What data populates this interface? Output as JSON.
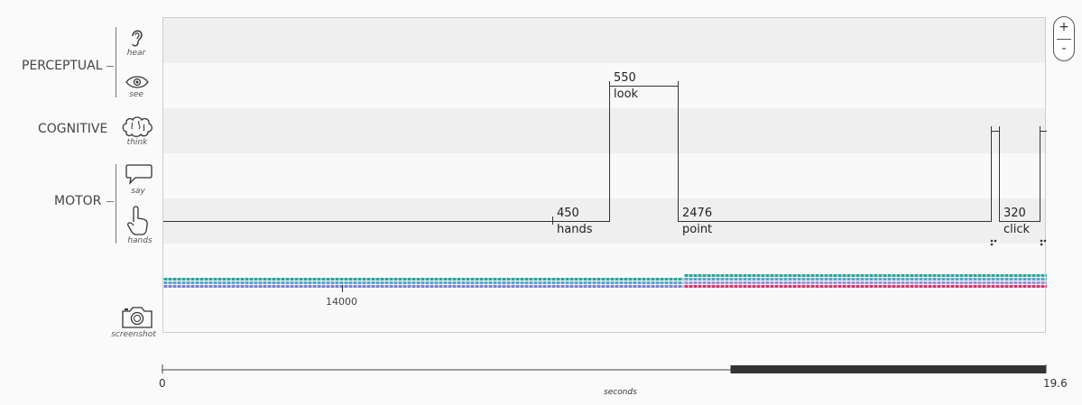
{
  "groups": {
    "perceptual": "PERCEPTUAL",
    "cognitive": "COGNITIVE",
    "motor": "MOTOR"
  },
  "operators": {
    "hear": "hear",
    "see": "see",
    "think": "think",
    "say": "say",
    "hands": "hands",
    "screenshot": "screenshot"
  },
  "icons": {
    "hear": "ear-icon",
    "see": "eye-icon",
    "think": "brain-icon",
    "say": "speech-bubble-icon",
    "hands": "pointing-hand-icon",
    "screenshot": "camera-icon"
  },
  "segments": {
    "hands_1": {
      "duration": "450",
      "label": "hands"
    },
    "look": {
      "duration": "550",
      "label": "look"
    },
    "point": {
      "duration": "2476",
      "label": "point"
    },
    "click": {
      "duration": "320",
      "label": "click"
    }
  },
  "strip": {
    "tick_label": "14000",
    "colors_left": [
      "#2aa39a",
      "#56a3c9",
      "#7b7fd1"
    ],
    "colors_right": [
      "#2aa39a",
      "#56a3c9",
      "#9b8fd8",
      "#d1336f"
    ]
  },
  "zoom": {
    "plus": "+",
    "minus": "-"
  },
  "timeline": {
    "start": "0",
    "end": "19.6",
    "unit": "seconds",
    "viewport_start_fraction": 0.643,
    "viewport_end_fraction": 1.0
  }
}
